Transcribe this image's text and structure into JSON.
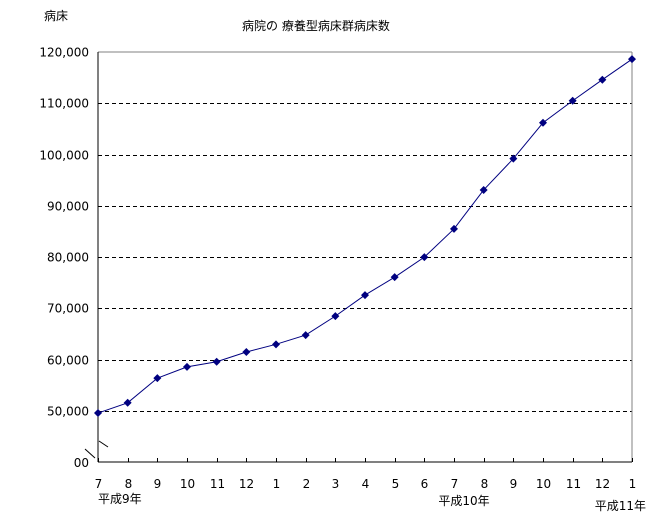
{
  "chart_data": {
    "type": "line",
    "title": "病院の 療養型病床群病床数",
    "ylabel": "病床",
    "xlabel": "",
    "categories": [
      "7",
      "8",
      "9",
      "10",
      "11",
      "12",
      "1",
      "2",
      "3",
      "4",
      "5",
      "6",
      "7",
      "8",
      "9",
      "10",
      "11",
      "12",
      "1"
    ],
    "year_labels": [
      {
        "label": "平成9年",
        "at_index": 0
      },
      {
        "label": "平成10年",
        "at_index": 12
      },
      {
        "label": "平成11年",
        "at_index": 18
      }
    ],
    "series": [
      {
        "values": [
          49600,
          51600,
          56400,
          58600,
          59600,
          61500,
          63000,
          64800,
          68500,
          72600,
          76100,
          80000,
          85500,
          93100,
          99200,
          106200,
          110500,
          114600,
          118600
        ]
      }
    ],
    "yticks": [
      50000,
      60000,
      70000,
      80000,
      90000,
      100000,
      110000,
      120000
    ],
    "ytick_labels": [
      "50,000",
      "60,000",
      "70,000",
      "80,000",
      "90,000",
      "100,000",
      "110,000",
      "120,000"
    ],
    "ybottom_label": "00",
    "ylim": [
      50000,
      120000
    ],
    "axis_break": true,
    "grid": "horizontal dashed",
    "colors": {
      "series": "#000080",
      "grid": "#000000",
      "frame": "#808080"
    }
  }
}
